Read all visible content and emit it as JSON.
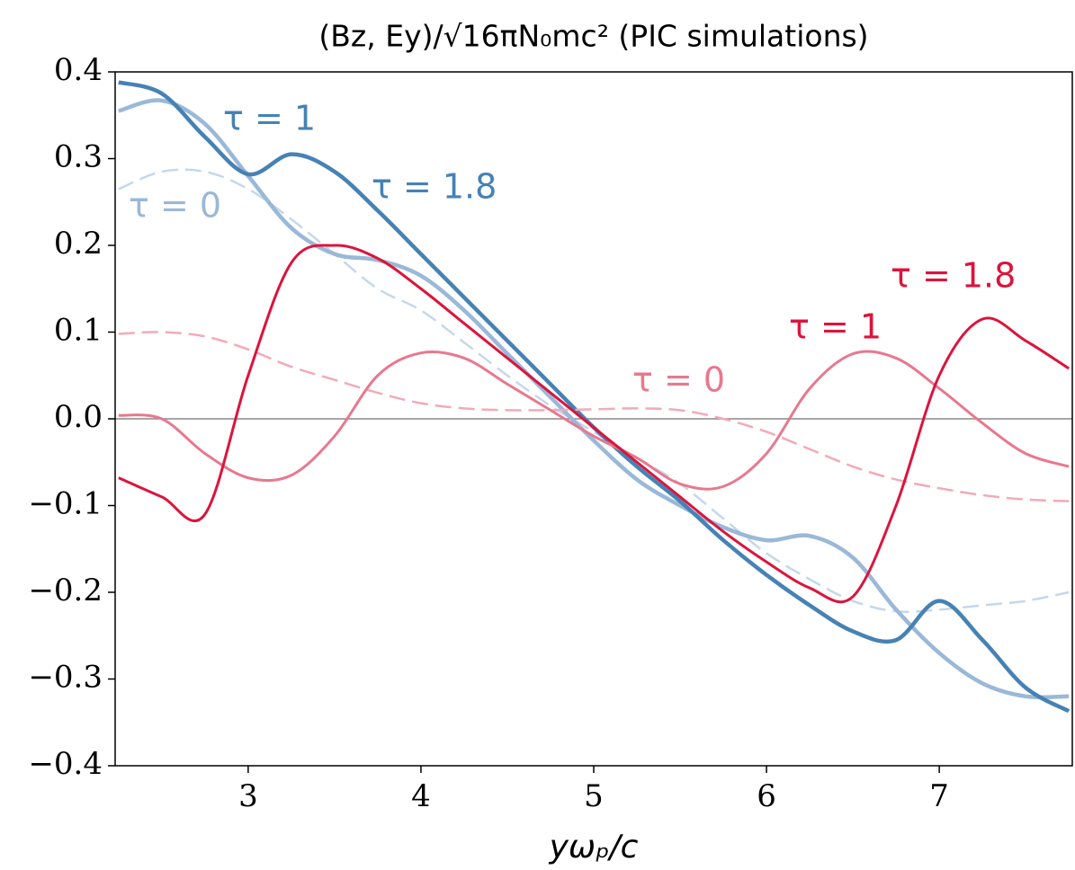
{
  "chart_data": {
    "type": "line",
    "title": "(Bz, Ey)/√16πN₀mc² (PIC simulations)",
    "x_label": "yωₚ/c",
    "xlim": [
      2.23,
      7.77
    ],
    "ylim": [
      -0.4,
      0.4
    ],
    "xticks": [
      3,
      4,
      5,
      6,
      7
    ],
    "yticks": [
      0.4,
      0.3,
      0.2,
      0.1,
      {
        "value": 0,
        "label": "0.0"
      },
      {
        "value": -0.1,
        "label": "−0.1"
      },
      {
        "value": -0.2,
        "label": "−0.2"
      },
      {
        "value": -0.3,
        "label": "−0.3"
      },
      {
        "value": -0.4,
        "label": "−0.4"
      }
    ],
    "x": [
      2.25,
      2.5,
      2.75,
      3.0,
      3.25,
      3.5,
      3.75,
      4.0,
      4.25,
      4.5,
      4.75,
      5.0,
      5.25,
      5.5,
      5.75,
      6.0,
      6.25,
      6.5,
      6.75,
      7.0,
      7.25,
      7.5,
      7.75
    ],
    "series": [
      {
        "color": "#c5d8ea",
        "dashed": true,
        "width": 2.5,
        "values": [
          0.265,
          0.285,
          0.285,
          0.265,
          0.23,
          0.19,
          0.15,
          0.125,
          0.088,
          0.05,
          0.015,
          -0.015,
          -0.045,
          -0.075,
          -0.115,
          -0.155,
          -0.185,
          -0.21,
          -0.222,
          -0.22,
          -0.215,
          -0.21,
          -0.2
        ]
      },
      {
        "color": "#9ab8d8",
        "dashed": false,
        "width": 4.5,
        "values": [
          0.355,
          0.367,
          0.34,
          0.28,
          0.22,
          0.19,
          0.183,
          0.165,
          0.125,
          0.075,
          0.025,
          -0.025,
          -0.07,
          -0.1,
          -0.125,
          -0.14,
          -0.135,
          -0.16,
          -0.22,
          -0.27,
          -0.305,
          -0.32,
          -0.32
        ]
      },
      {
        "color": "#4682b4",
        "dashed": false,
        "width": 4.5,
        "values": [
          0.388,
          0.375,
          0.325,
          0.282,
          0.305,
          0.285,
          0.24,
          0.19,
          0.14,
          0.09,
          0.04,
          -0.01,
          -0.055,
          -0.095,
          -0.14,
          -0.18,
          -0.215,
          -0.245,
          -0.255,
          -0.21,
          -0.255,
          -0.31,
          -0.337
        ]
      },
      {
        "color": "#f2aab8",
        "dashed": true,
        "width": 2.5,
        "values": [
          0.098,
          0.1,
          0.095,
          0.08,
          0.06,
          0.045,
          0.03,
          0.018,
          0.012,
          0.01,
          0.01,
          0.011,
          0.012,
          0.01,
          0.0,
          -0.015,
          -0.035,
          -0.055,
          -0.07,
          -0.08,
          -0.088,
          -0.093,
          -0.095
        ]
      },
      {
        "color": "#e8788e",
        "dashed": false,
        "width": 3,
        "values": [
          0.004,
          0.0,
          -0.04,
          -0.068,
          -0.065,
          -0.02,
          0.05,
          0.076,
          0.07,
          0.04,
          0.01,
          -0.02,
          -0.045,
          -0.075,
          -0.078,
          -0.04,
          0.035,
          0.075,
          0.07,
          0.035,
          -0.005,
          -0.04,
          -0.055
        ]
      },
      {
        "color": "#dc143c",
        "dashed": false,
        "width": 3,
        "values": [
          -0.068,
          -0.09,
          -0.11,
          0.05,
          0.18,
          0.2,
          0.185,
          0.15,
          0.11,
          0.07,
          0.03,
          -0.01,
          -0.05,
          -0.09,
          -0.13,
          -0.165,
          -0.195,
          -0.205,
          -0.1,
          0.05,
          0.115,
          0.09,
          0.058
        ]
      }
    ],
    "annotations": [
      {
        "text": "τ = 1",
        "color": "#4682b4"
      },
      {
        "text": "τ = 1.8",
        "color": "#4682b4"
      },
      {
        "text": "τ = 0",
        "color": "#9ab8d8"
      },
      {
        "text": "τ = 1.8",
        "color": "#dc143c"
      },
      {
        "text": "τ = 1",
        "color": "#dc143c"
      },
      {
        "text": "τ = 0",
        "color": "#e8788e"
      }
    ]
  }
}
